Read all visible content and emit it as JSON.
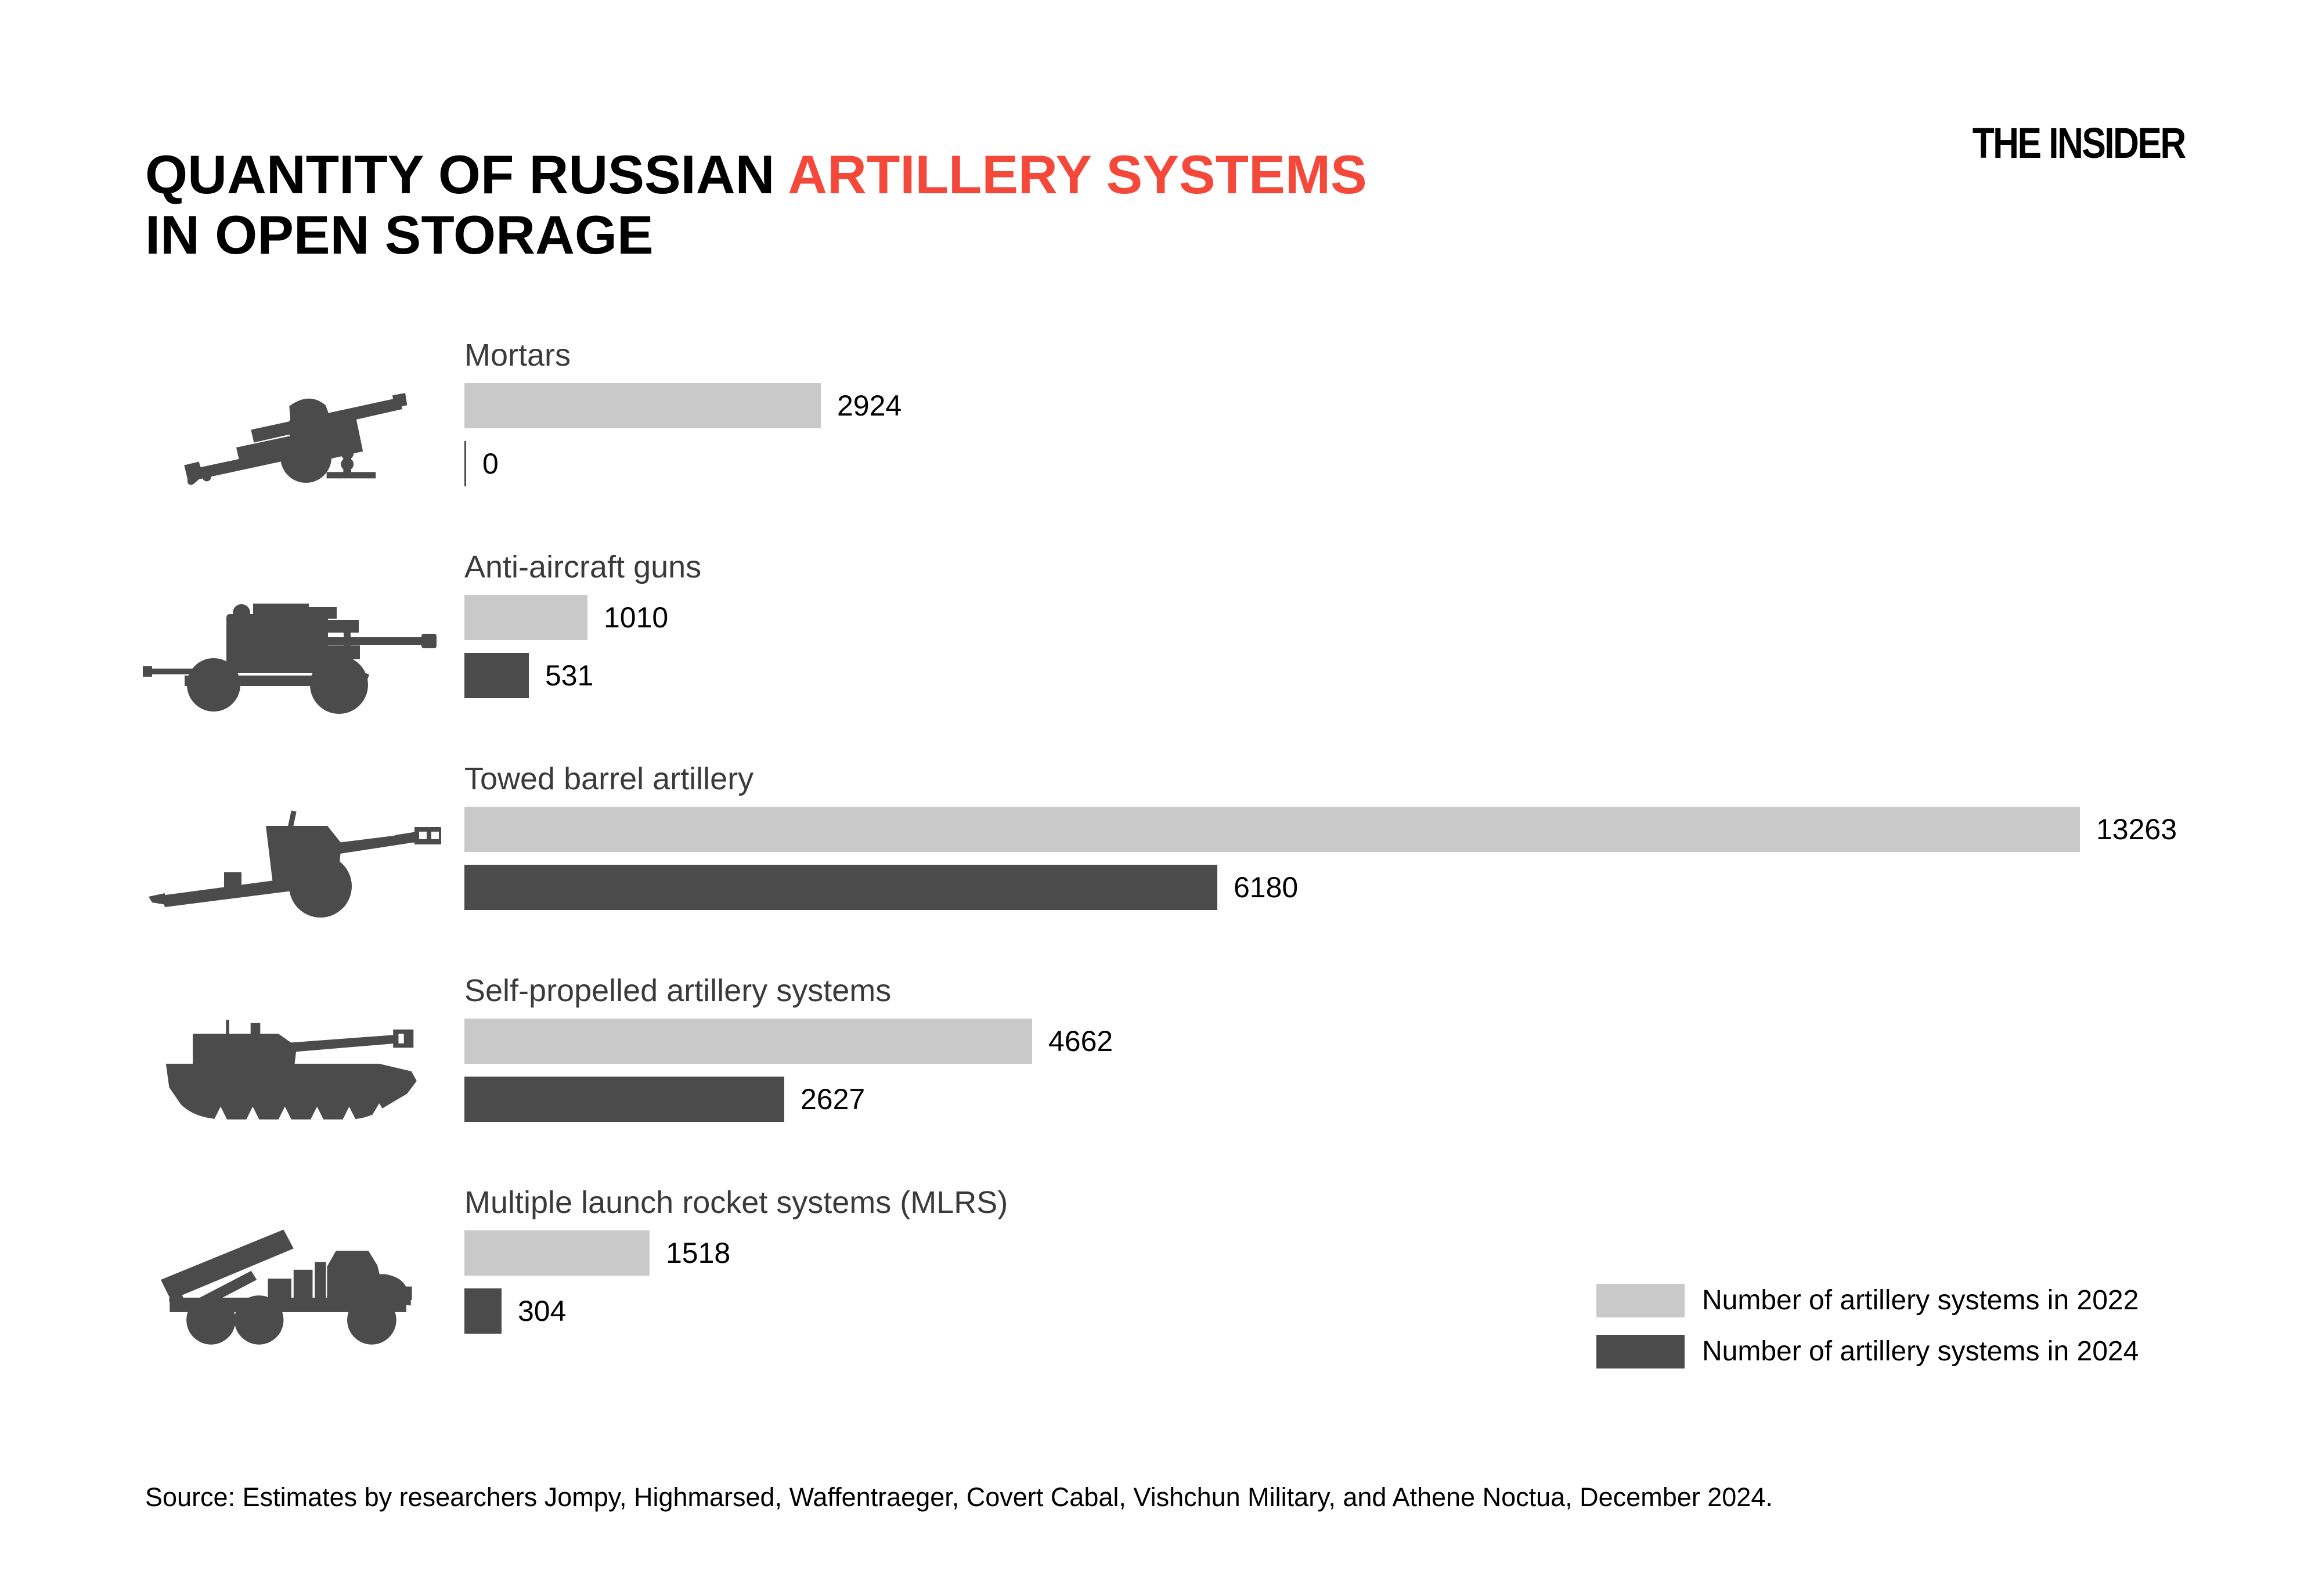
{
  "header": {
    "title_prefix": "QUANTITY OF RUSSIAN ",
    "title_highlight": "ARTILLERY SYSTEMS",
    "title_line2": "IN OPEN STORAGE",
    "highlight_color": "#f4483b",
    "logo": "THE INSIDER"
  },
  "chart_data": {
    "type": "bar",
    "orientation": "horizontal",
    "title": "QUANTITY OF RUSSIAN ARTILLERY SYSTEMS IN OPEN STORAGE",
    "categories": [
      "Mortars",
      "Anti-aircraft guns",
      "Towed barrel artillery",
      "Self-propelled artillery systems",
      "Multiple launch rocket systems (MLRS)"
    ],
    "series": [
      {
        "name": "Number of artillery systems in 2022",
        "color": "#c9c9c9",
        "values": [
          2924,
          1010,
          13263,
          4662,
          1518
        ]
      },
      {
        "name": "Number of artillery systems in 2024",
        "color": "#4b4b4b",
        "values": [
          0,
          531,
          6180,
          2627,
          304
        ]
      }
    ],
    "xmax": 13263,
    "value_labels": true,
    "grid": false,
    "legend_position": "bottom-right",
    "icons": [
      "field-gun-silhouette",
      "anti-aircraft-gun-silhouette",
      "towed-howitzer-silhouette",
      "self-propelled-gun-silhouette",
      "mlrs-truck-silhouette"
    ],
    "icon_color": "#4b4b4b"
  },
  "source": {
    "text": "Source: Estimates by researchers Jompy, Highmarsed, Waffentraeger, Covert Cabal, Vishchun Military, and Athene Noctua, December 2024."
  }
}
